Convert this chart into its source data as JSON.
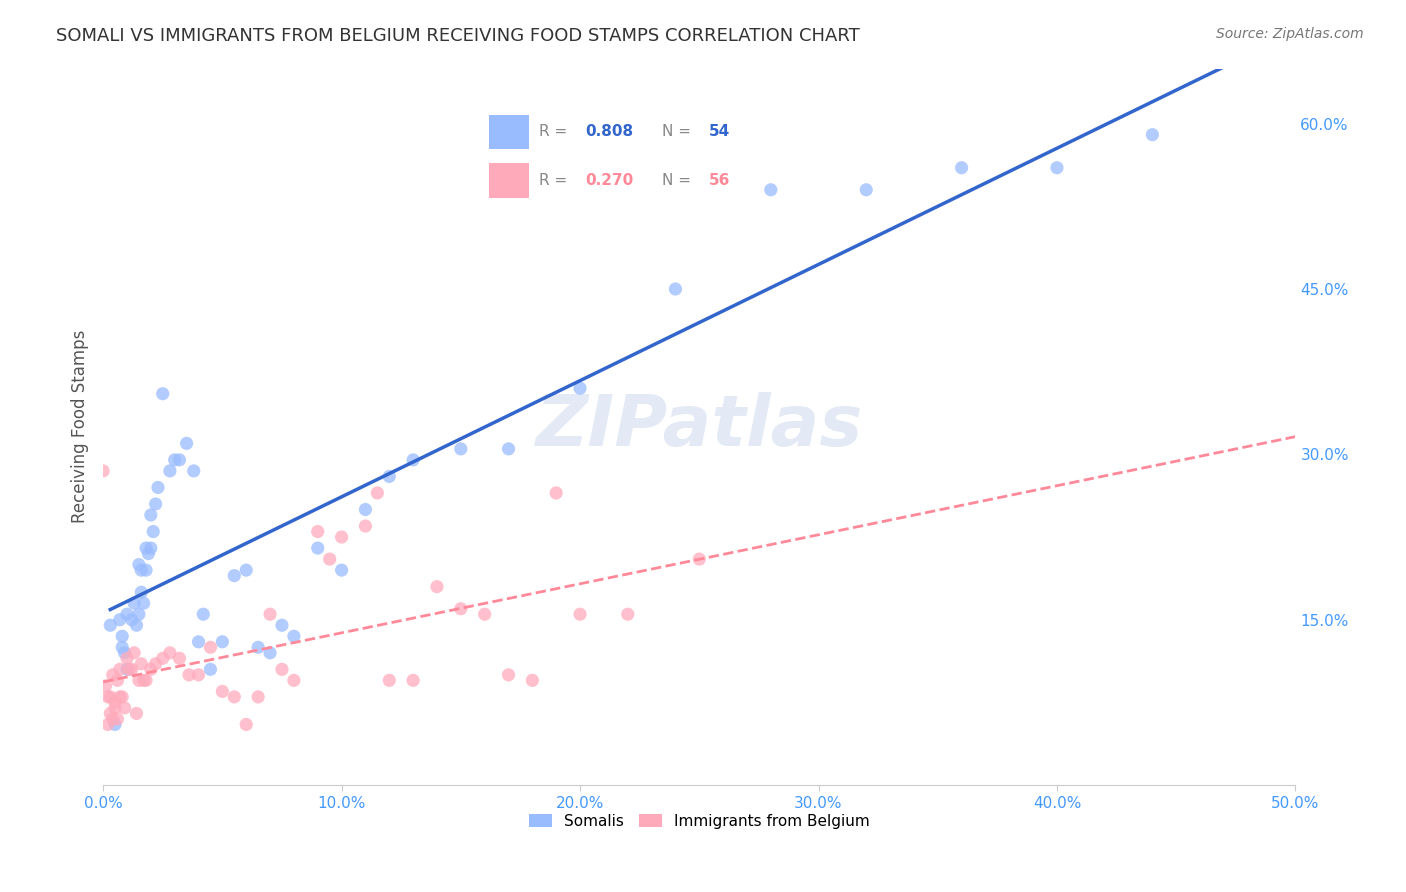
{
  "title": "SOMALI VS IMMIGRANTS FROM BELGIUM RECEIVING FOOD STAMPS CORRELATION CHART",
  "source": "Source: ZipAtlas.com",
  "ylabel": "Receiving Food Stamps",
  "xlabel": "",
  "watermark": "ZIPatlas",
  "xlim": [
    0.0,
    0.5
  ],
  "ylim": [
    0.0,
    0.65
  ],
  "xticks": [
    0.0,
    0.1,
    0.2,
    0.3,
    0.4,
    0.5
  ],
  "ytick_positions": [
    0.15,
    0.3,
    0.45,
    0.6
  ],
  "ytick_labels": [
    "15.0%",
    "30.0%",
    "45.0%",
    "60.0%"
  ],
  "xtick_labels": [
    "0.0%",
    "10.0%",
    "20.0%",
    "30.0%",
    "40.0%",
    "50.0%"
  ],
  "grid_color": "#cccccc",
  "title_color": "#333333",
  "axis_color": "#4499ff",
  "somali_color": "#99bbff",
  "belgium_color": "#ffaabb",
  "somali_line_color": "#3366cc",
  "belgium_line_color": "#ff8899",
  "legend_R_somali": "R = 0.808",
  "legend_N_somali": "N = 54",
  "legend_R_belgium": "R = 0.270",
  "legend_N_belgium": "N = 56",
  "somali_R": 0.808,
  "somali_N": 54,
  "belgium_R": 0.27,
  "belgium_N": 56,
  "somali_x": [
    0.003,
    0.005,
    0.007,
    0.008,
    0.008,
    0.009,
    0.01,
    0.01,
    0.012,
    0.013,
    0.014,
    0.015,
    0.015,
    0.016,
    0.016,
    0.017,
    0.018,
    0.018,
    0.019,
    0.02,
    0.02,
    0.021,
    0.022,
    0.023,
    0.025,
    0.028,
    0.03,
    0.032,
    0.035,
    0.038,
    0.04,
    0.042,
    0.045,
    0.05,
    0.055,
    0.06,
    0.065,
    0.07,
    0.075,
    0.08,
    0.09,
    0.1,
    0.11,
    0.12,
    0.13,
    0.15,
    0.17,
    0.2,
    0.24,
    0.28,
    0.32,
    0.36,
    0.4,
    0.44
  ],
  "somali_y": [
    0.145,
    0.055,
    0.15,
    0.125,
    0.135,
    0.12,
    0.155,
    0.105,
    0.15,
    0.165,
    0.145,
    0.2,
    0.155,
    0.195,
    0.175,
    0.165,
    0.215,
    0.195,
    0.21,
    0.245,
    0.215,
    0.23,
    0.255,
    0.27,
    0.355,
    0.285,
    0.295,
    0.295,
    0.31,
    0.285,
    0.13,
    0.155,
    0.105,
    0.13,
    0.19,
    0.195,
    0.125,
    0.12,
    0.145,
    0.135,
    0.215,
    0.195,
    0.25,
    0.28,
    0.295,
    0.305,
    0.305,
    0.36,
    0.45,
    0.54,
    0.54,
    0.56,
    0.56,
    0.59
  ],
  "belgium_x": [
    0.0,
    0.001,
    0.002,
    0.002,
    0.003,
    0.003,
    0.004,
    0.004,
    0.005,
    0.005,
    0.006,
    0.006,
    0.007,
    0.007,
    0.008,
    0.009,
    0.01,
    0.011,
    0.012,
    0.013,
    0.014,
    0.015,
    0.016,
    0.017,
    0.018,
    0.02,
    0.022,
    0.025,
    0.028,
    0.032,
    0.036,
    0.04,
    0.045,
    0.05,
    0.055,
    0.06,
    0.065,
    0.07,
    0.075,
    0.08,
    0.09,
    0.095,
    0.1,
    0.11,
    0.115,
    0.12,
    0.13,
    0.14,
    0.15,
    0.16,
    0.17,
    0.18,
    0.19,
    0.2,
    0.22,
    0.25
  ],
  "belgium_y": [
    0.285,
    0.09,
    0.055,
    0.08,
    0.065,
    0.08,
    0.06,
    0.1,
    0.07,
    0.075,
    0.06,
    0.095,
    0.08,
    0.105,
    0.08,
    0.07,
    0.115,
    0.105,
    0.105,
    0.12,
    0.065,
    0.095,
    0.11,
    0.095,
    0.095,
    0.105,
    0.11,
    0.115,
    0.12,
    0.115,
    0.1,
    0.1,
    0.125,
    0.085,
    0.08,
    0.055,
    0.08,
    0.155,
    0.105,
    0.095,
    0.23,
    0.205,
    0.225,
    0.235,
    0.265,
    0.095,
    0.095,
    0.18,
    0.16,
    0.155,
    0.1,
    0.095,
    0.265,
    0.155,
    0.155,
    0.205
  ]
}
